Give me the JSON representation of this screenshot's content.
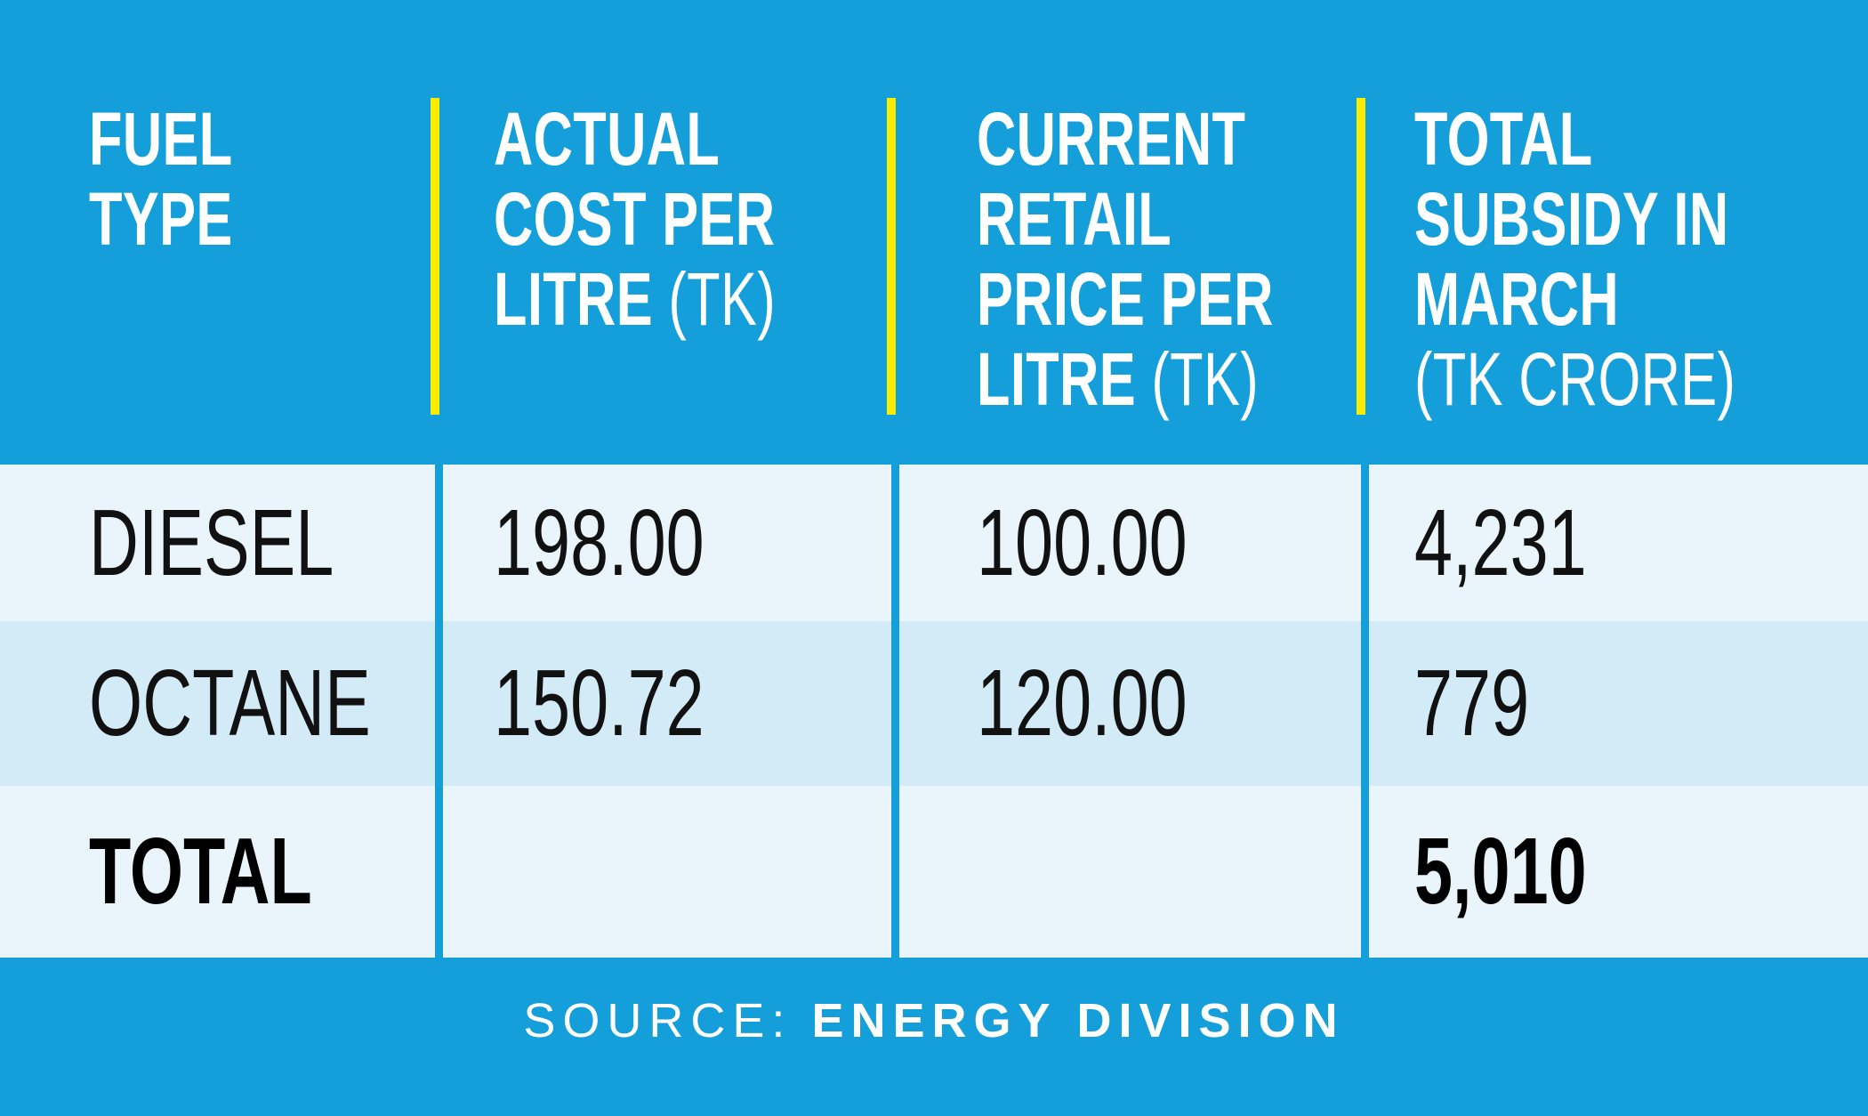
{
  "colors": {
    "blue": "#149fdb",
    "yellow": "#f8ec00",
    "row_light": "#eaf4fb",
    "row_mid": "#d3eaf7",
    "ink": "#111111",
    "header_text": "#ffffff"
  },
  "table": {
    "columns": [
      {
        "id": "fuel_type",
        "header_lines": [
          "FUEL",
          "TYPE"
        ],
        "unit": null,
        "unit_inline": false
      },
      {
        "id": "actual_cost",
        "header_lines": [
          "ACTUAL",
          "COST PER",
          "LITRE"
        ],
        "unit": "(TK)",
        "unit_inline": true
      },
      {
        "id": "retail_price",
        "header_lines": [
          "CURRENT",
          "RETAIL",
          "PRICE PER",
          "LITRE"
        ],
        "unit": "(TK)",
        "unit_inline": true
      },
      {
        "id": "subsidy",
        "header_lines": [
          "TOTAL",
          "SUBSIDY IN",
          "MARCH"
        ],
        "unit": "(TK CRORE)",
        "unit_inline": false
      }
    ],
    "rows": [
      {
        "fuel_type": "DIESEL",
        "actual_cost": "198.00",
        "retail_price": "100.00",
        "subsidy": "4,231",
        "emphasis": false
      },
      {
        "fuel_type": "OCTANE",
        "actual_cost": "150.72",
        "retail_price": "120.00",
        "subsidy": "779",
        "emphasis": false
      },
      {
        "fuel_type": "TOTAL",
        "actual_cost": "",
        "retail_price": "",
        "subsidy": "5,010",
        "emphasis": true
      }
    ]
  },
  "footer": {
    "source_label": "SOURCE:",
    "source_value": "ENERGY DIVISION"
  },
  "chart_data": {
    "type": "table",
    "title": "",
    "columns": [
      "FUEL TYPE",
      "ACTUAL COST PER LITRE (TK)",
      "CURRENT RETAIL PRICE PER LITRE (TK)",
      "TOTAL SUBSIDY IN MARCH (TK CRORE)"
    ],
    "rows": [
      [
        "DIESEL",
        198.0,
        100.0,
        4231
      ],
      [
        "OCTANE",
        150.72,
        120.0,
        779
      ],
      [
        "TOTAL",
        null,
        null,
        5010
      ]
    ],
    "source": "ENERGY DIVISION"
  }
}
